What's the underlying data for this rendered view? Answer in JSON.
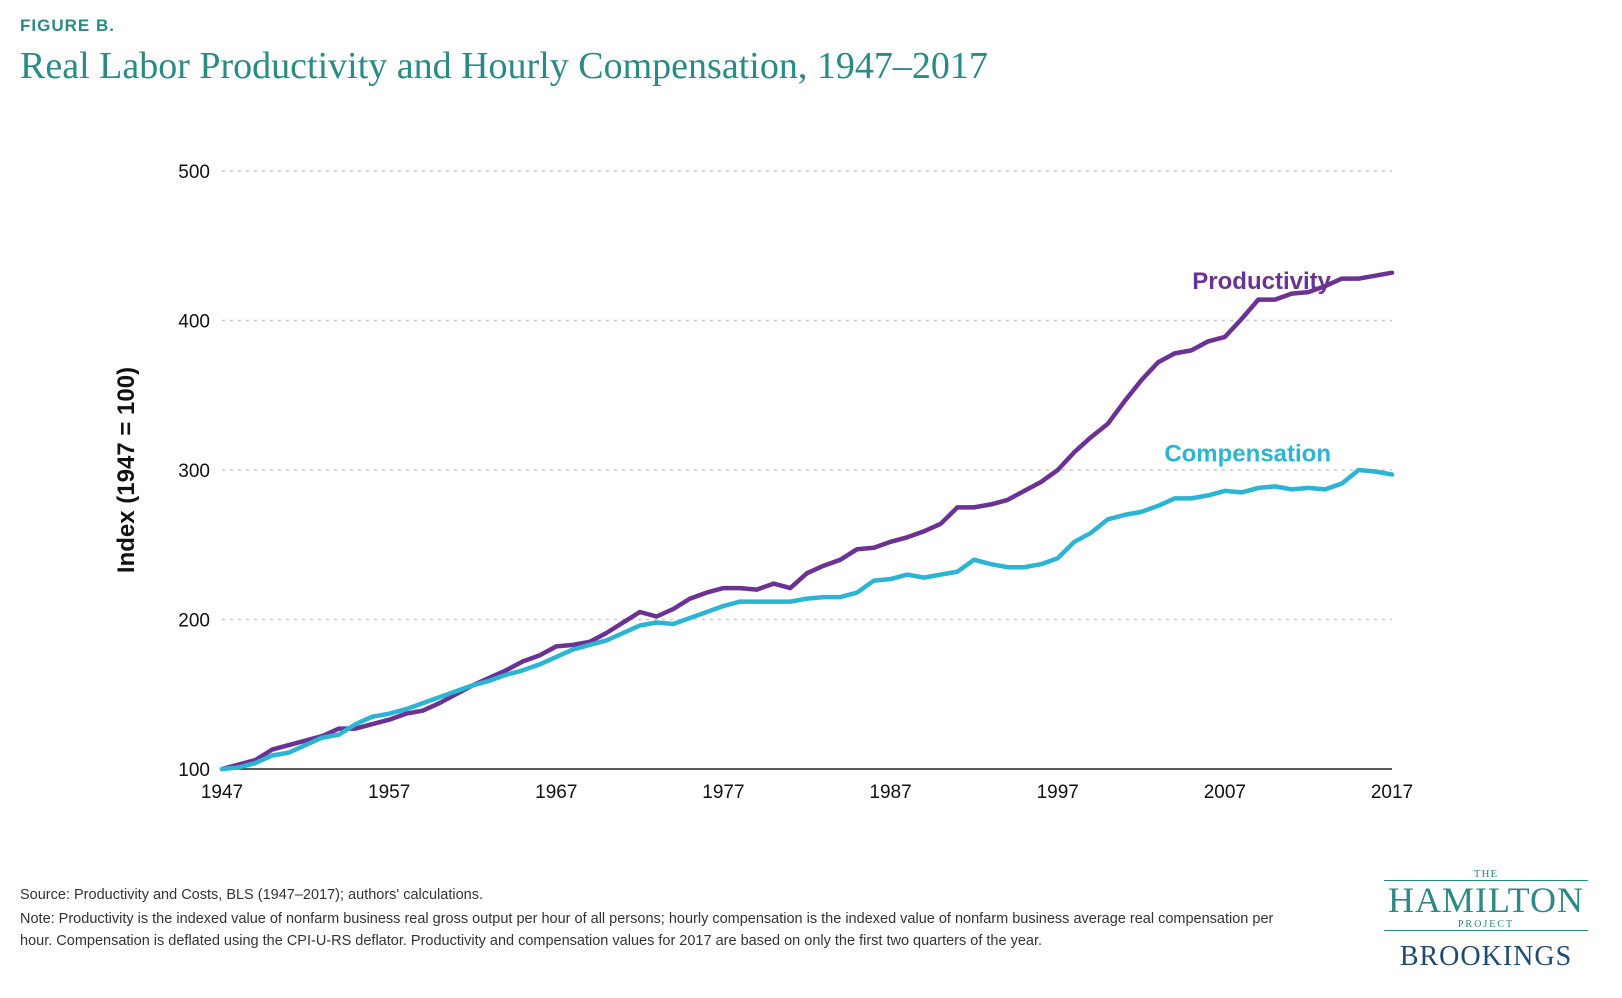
{
  "figure_label": "FIGURE B.",
  "title": "Real Labor Productivity and Hourly Compensation, 1947–2017",
  "source": "Source: Productivity and Costs, BLS (1947–2017); authors' calculations.",
  "note": "Note: Productivity is the indexed value of nonfarm business real gross output per hour of all persons; hourly compensation is the indexed value of nonfarm business average real compensation per hour. Compensation is deflated using the CPI-U-RS deflator. Productivity and compensation values for 2017 are based on only the first two quarters of the year.",
  "logo": {
    "the": "THE",
    "hamilton": "HAMILTON",
    "project": "PROJECT",
    "brookings": "BROOKINGS"
  },
  "colors": {
    "productivity": "#6b3294",
    "compensation": "#2bb5d3",
    "title": "#2a8a84",
    "grid": "#c8c8c8"
  },
  "chart_data": {
    "type": "line",
    "title": "Real Labor Productivity and Hourly Compensation, 1947–2017",
    "xlabel": "",
    "ylabel": "Index (1947 = 100)",
    "xlim": [
      1947,
      2017
    ],
    "ylim": [
      100,
      500
    ],
    "x_ticks": [
      1947,
      1957,
      1967,
      1977,
      1987,
      1997,
      2007,
      2017
    ],
    "y_ticks": [
      100,
      200,
      300,
      400,
      500
    ],
    "grid": "horizontal dotted",
    "legend": "inline labels at line ends",
    "x": [
      1947,
      1948,
      1949,
      1950,
      1951,
      1952,
      1953,
      1954,
      1955,
      1956,
      1957,
      1958,
      1959,
      1960,
      1961,
      1962,
      1963,
      1964,
      1965,
      1966,
      1967,
      1968,
      1969,
      1970,
      1971,
      1972,
      1973,
      1974,
      1975,
      1976,
      1977,
      1978,
      1979,
      1980,
      1981,
      1982,
      1983,
      1984,
      1985,
      1986,
      1987,
      1988,
      1989,
      1990,
      1991,
      1992,
      1993,
      1994,
      1995,
      1996,
      1997,
      1998,
      1999,
      2000,
      2001,
      2002,
      2003,
      2004,
      2005,
      2006,
      2007,
      2008,
      2009,
      2010,
      2011,
      2012,
      2013,
      2014,
      2015,
      2016,
      2017
    ],
    "series": [
      {
        "name": "Productivity",
        "values": [
          100,
          103,
          106,
          113,
          116,
          119,
          122,
          127,
          127,
          130,
          133,
          137,
          139,
          144,
          150,
          156,
          161,
          166,
          172,
          176,
          182,
          183,
          185,
          191,
          198,
          205,
          202,
          207,
          214,
          218,
          221,
          221,
          220,
          224,
          221,
          231,
          236,
          240,
          247,
          248,
          252,
          255,
          259,
          264,
          275,
          275,
          277,
          280,
          286,
          292,
          300,
          312,
          322,
          331,
          346,
          360,
          372,
          378,
          380,
          386,
          389,
          401,
          414,
          414,
          418,
          419,
          423,
          428,
          428,
          430,
          432
        ],
        "label": "Productivity"
      },
      {
        "name": "Compensation",
        "values": [
          100,
          101,
          104,
          109,
          111,
          116,
          121,
          123,
          130,
          135,
          137,
          140,
          144,
          148,
          152,
          156,
          159,
          163,
          166,
          170,
          175,
          180,
          183,
          186,
          191,
          196,
          198,
          197,
          201,
          205,
          209,
          212,
          212,
          212,
          212,
          214,
          215,
          215,
          218,
          226,
          227,
          230,
          228,
          230,
          232,
          240,
          237,
          235,
          235,
          237,
          241,
          252,
          258,
          267,
          270,
          272,
          276,
          281,
          281,
          283,
          286,
          285,
          288,
          289,
          287,
          288,
          287,
          291,
          300,
          299,
          297
        ],
        "label": "Compensation"
      }
    ]
  }
}
